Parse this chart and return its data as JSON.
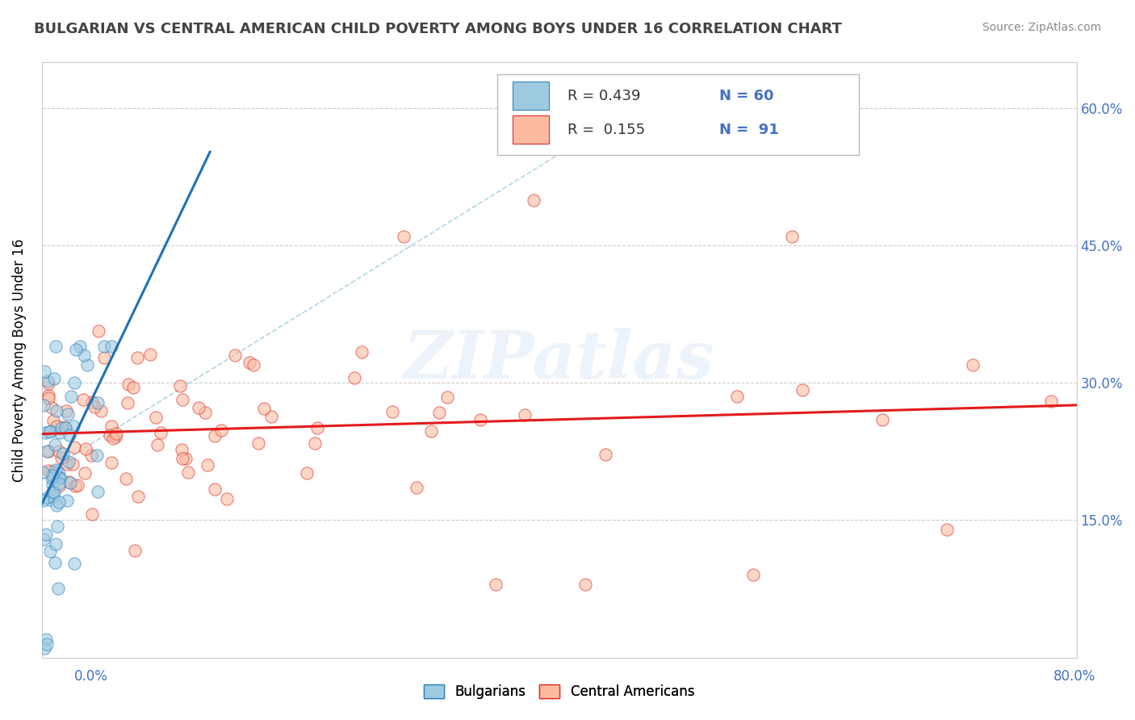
{
  "title": "BULGARIAN VS CENTRAL AMERICAN CHILD POVERTY AMONG BOYS UNDER 16 CORRELATION CHART",
  "source": "Source: ZipAtlas.com",
  "ylabel": "Child Poverty Among Boys Under 16",
  "xlim": [
    0.0,
    0.8
  ],
  "ylim": [
    0.0,
    0.65
  ],
  "yticks": [
    0.0,
    0.15,
    0.3,
    0.45,
    0.6
  ],
  "blue_color": "#9ecae1",
  "blue_edge_color": "#3182bd",
  "pink_color": "#fcbba1",
  "pink_edge_color": "#de2d26",
  "blue_line_color": "#2171b5",
  "pink_line_color": "#e31a1c",
  "dash_line_color": "#9ecae1",
  "watermark": "ZIPatlas",
  "title_color": "#444444",
  "source_color": "#888888",
  "grid_color": "#cccccc",
  "label_color": "#4472c4"
}
